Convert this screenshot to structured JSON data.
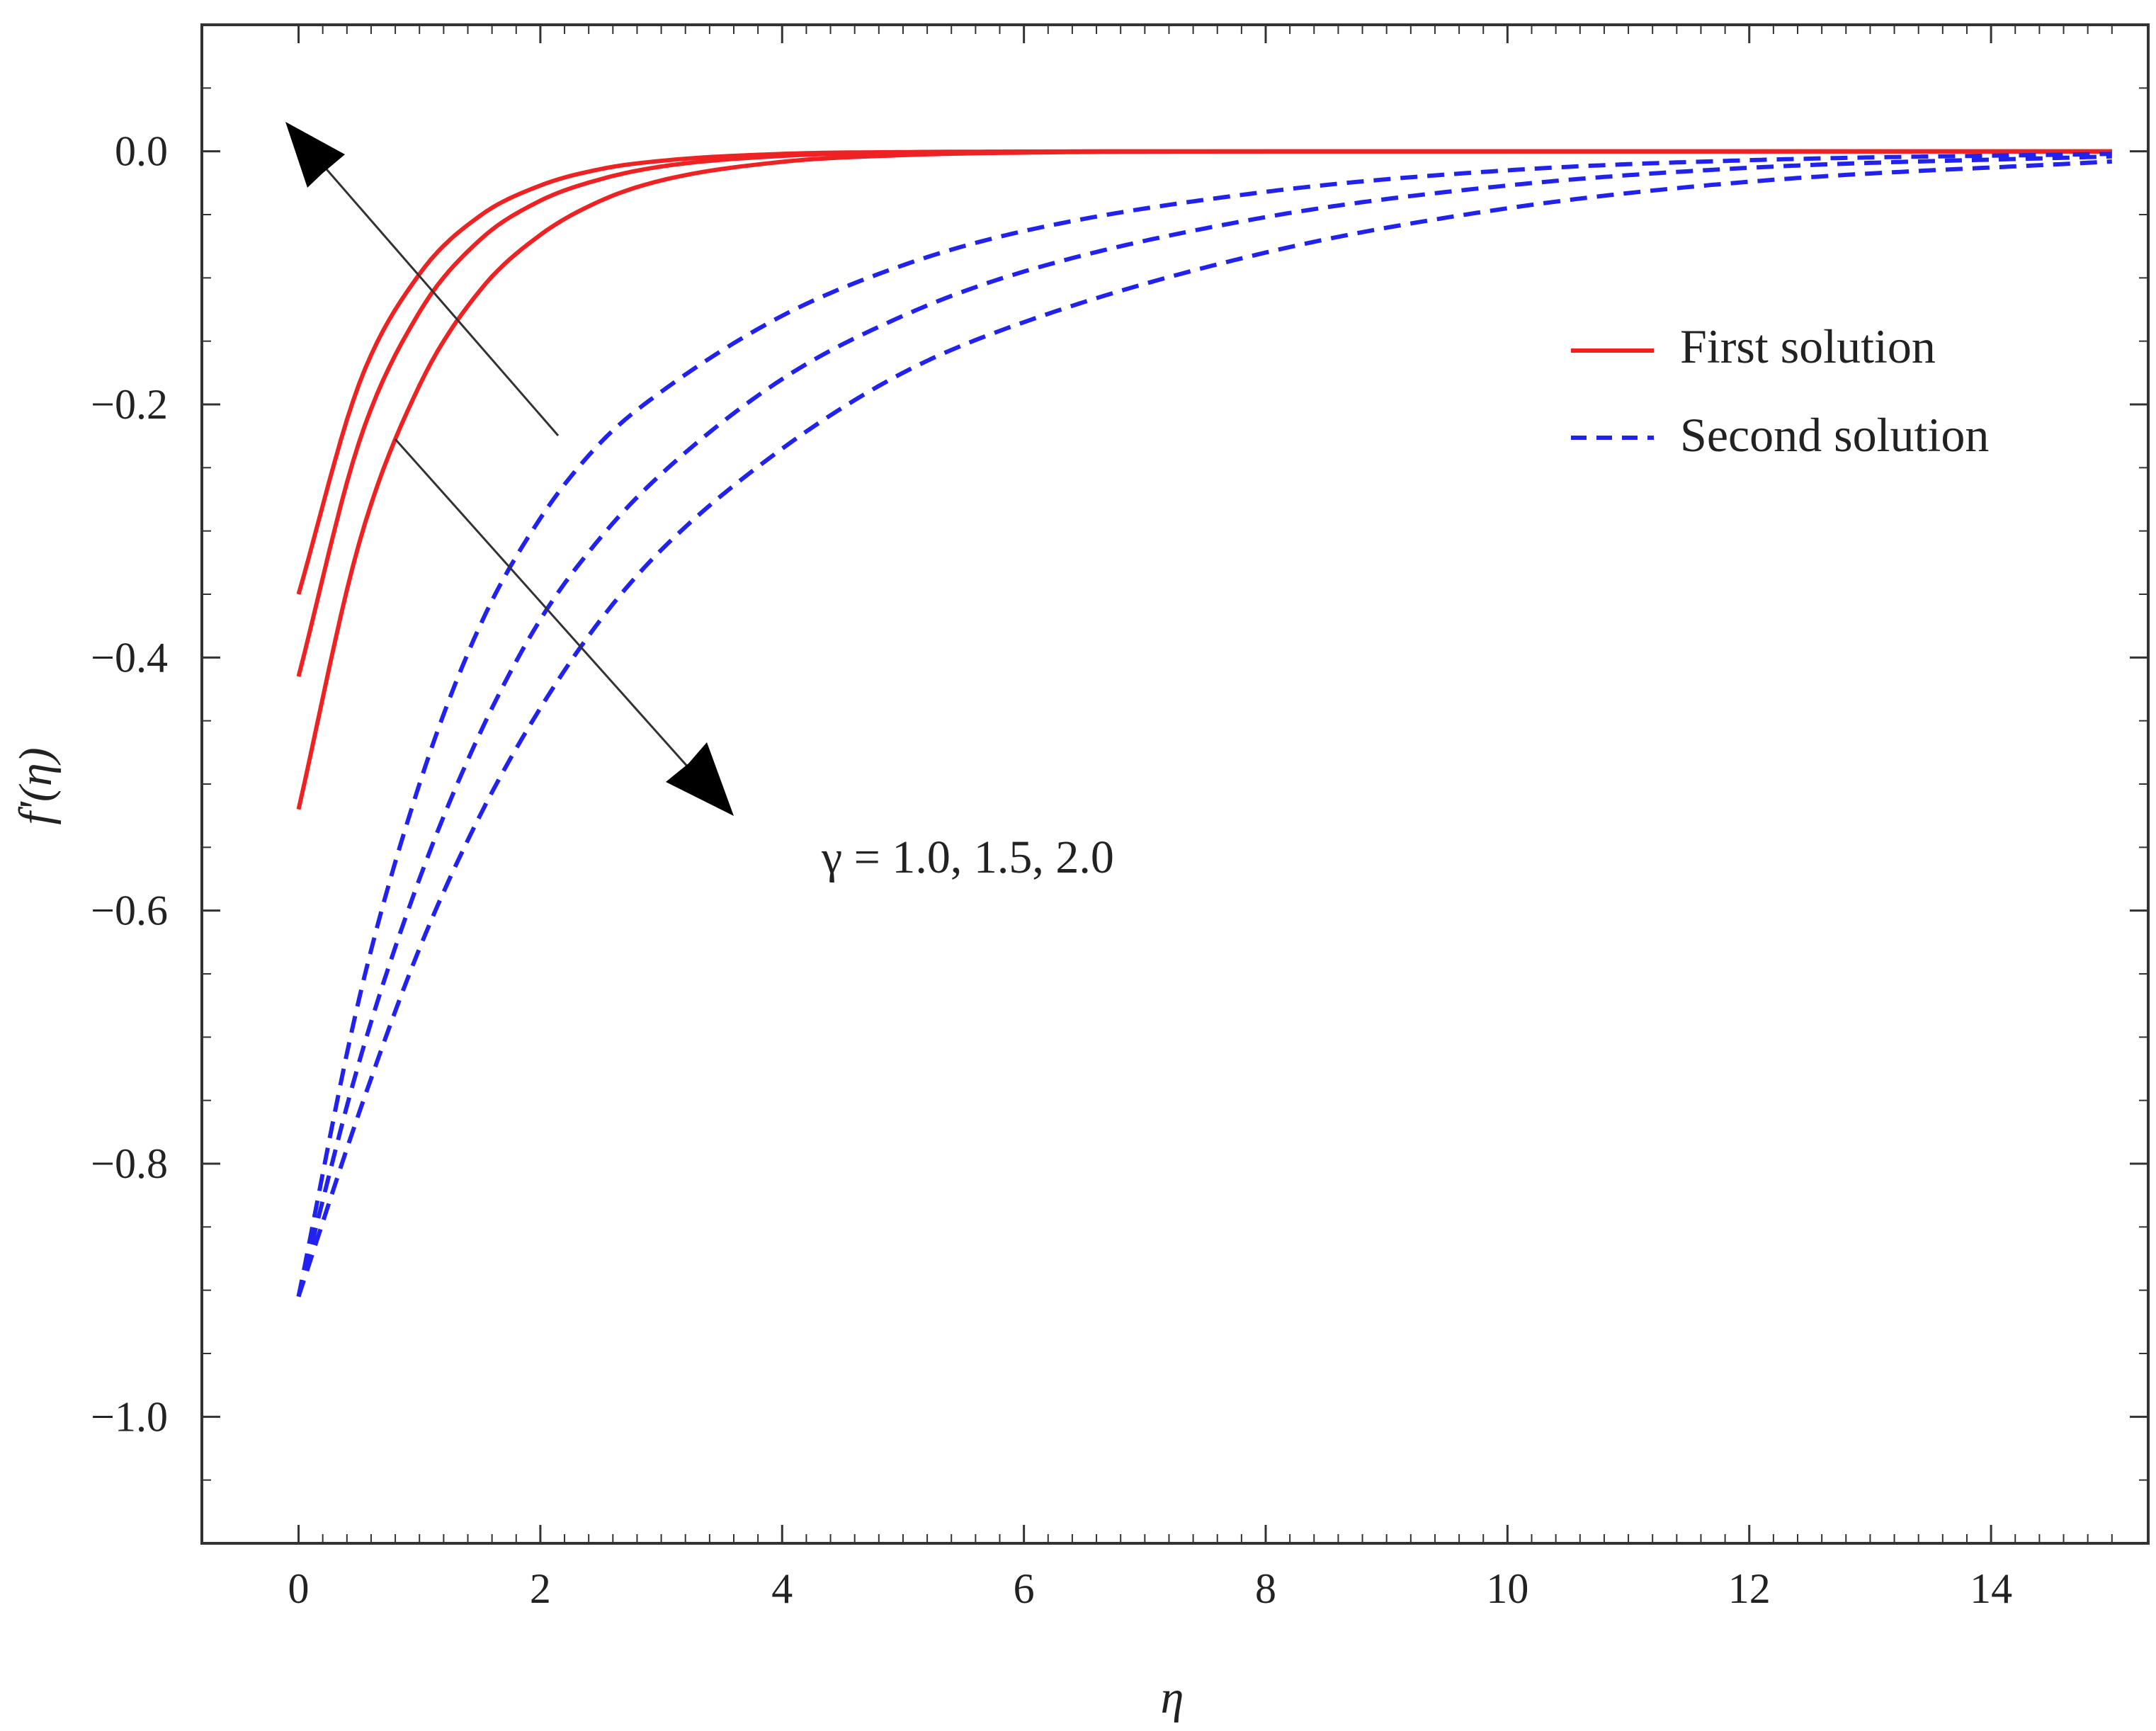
{
  "chart_data": {
    "type": "line",
    "xlabel": "η",
    "ylabel": "f'(η)",
    "xlim": [
      -0.8,
      15.3
    ],
    "ylim": [
      -1.1,
      0.1
    ],
    "xticks": [
      0,
      2,
      4,
      6,
      8,
      10,
      12,
      14
    ],
    "xtick_labels": [
      "0",
      "2",
      "4",
      "6",
      "8",
      "10",
      "12",
      "14"
    ],
    "yticks": [
      0.0,
      -0.2,
      -0.4,
      -0.6,
      -0.8,
      -1.0
    ],
    "ytick_labels": [
      "0.0",
      "−0.2",
      "−0.4",
      "−0.6",
      "−0.8",
      "−1.0"
    ],
    "grid": false,
    "legend_position": "top-right",
    "legend": [
      {
        "label": "First solution",
        "style": "solid",
        "color": "#ee2222"
      },
      {
        "label": "Second solution",
        "style": "dashed",
        "color": "#2222ee"
      }
    ],
    "annotation": "γ = 1.0, 1.5, 2.0",
    "gamma_values": [
      1.0,
      1.5,
      2.0
    ],
    "series": [
      {
        "group": "first",
        "gamma": 1.0,
        "color": "#ee2222",
        "style": "solid",
        "x": [
          0,
          0.5,
          1,
          1.5,
          2,
          2.5,
          3,
          4,
          5,
          6,
          8,
          10,
          12,
          15
        ],
        "y": [
          -0.35,
          -0.184,
          -0.097,
          -0.051,
          -0.027,
          -0.014,
          -0.0075,
          -0.002,
          -0.0006,
          -0.0002,
          0,
          0,
          0,
          0
        ]
      },
      {
        "group": "first",
        "gamma": 1.5,
        "color": "#ee2222",
        "style": "solid",
        "x": [
          0,
          0.5,
          1,
          1.5,
          2,
          2.5,
          3,
          4,
          5,
          6,
          8,
          10,
          12,
          15
        ],
        "y": [
          -0.415,
          -0.23,
          -0.127,
          -0.07,
          -0.039,
          -0.022,
          -0.012,
          -0.0036,
          -0.0011,
          -0.0003,
          0,
          0,
          0,
          0
        ]
      },
      {
        "group": "first",
        "gamma": 2.0,
        "color": "#ee2222",
        "style": "solid",
        "x": [
          0,
          0.5,
          1,
          1.5,
          2,
          2.5,
          3,
          4,
          5,
          6,
          8,
          10,
          12,
          15
        ],
        "y": [
          -0.52,
          -0.31,
          -0.185,
          -0.11,
          -0.066,
          -0.039,
          -0.023,
          -0.0083,
          -0.003,
          -0.001,
          -0.0001,
          0,
          0,
          0
        ]
      },
      {
        "group": "second",
        "gamma": 1.0,
        "color": "#2222ee",
        "style": "dashed",
        "x": [
          0,
          0.5,
          1,
          1.5,
          2,
          2.5,
          3,
          4,
          5,
          6,
          8,
          10,
          12,
          15
        ],
        "y": [
          -0.905,
          -0.67,
          -0.5,
          -0.375,
          -0.29,
          -0.23,
          -0.19,
          -0.13,
          -0.09,
          -0.063,
          -0.032,
          -0.015,
          -0.007,
          -0.002
        ]
      },
      {
        "group": "second",
        "gamma": 1.5,
        "color": "#2222ee",
        "style": "dashed",
        "x": [
          0,
          0.5,
          1,
          1.5,
          2,
          2.5,
          3,
          4,
          5,
          6,
          8,
          10,
          12,
          15
        ],
        "y": [
          -0.905,
          -0.72,
          -0.575,
          -0.46,
          -0.37,
          -0.305,
          -0.255,
          -0.18,
          -0.13,
          -0.095,
          -0.052,
          -0.027,
          -0.013,
          -0.004
        ]
      },
      {
        "group": "second",
        "gamma": 2.0,
        "color": "#2222ee",
        "style": "dashed",
        "x": [
          0,
          0.5,
          1,
          1.5,
          2,
          2.5,
          3,
          4,
          5,
          6,
          8,
          10,
          12,
          15
        ],
        "y": [
          -0.905,
          -0.76,
          -0.63,
          -0.525,
          -0.44,
          -0.37,
          -0.315,
          -0.235,
          -0.175,
          -0.135,
          -0.08,
          -0.045,
          -0.024,
          -0.008
        ]
      }
    ]
  }
}
